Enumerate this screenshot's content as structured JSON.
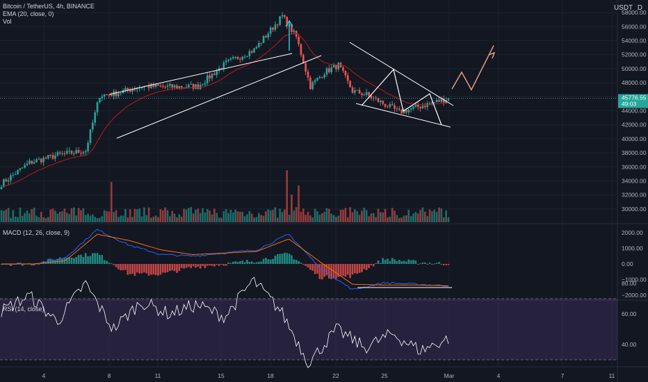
{
  "header": {
    "symbol_line": "Bitcoin / TetherUS, 4h, BINANCE",
    "ema_line": "EMA (20, close, 0)",
    "vol_line": "Vol",
    "currency": "USDT",
    "currency_sub": "D"
  },
  "price_axis": {
    "ticks": [
      "58000.00",
      "56000.00",
      "54000.00",
      "52000.00",
      "50000.00",
      "48000.00",
      "46000.00",
      "44000.00",
      "42000.00",
      "40000.00",
      "38000.00",
      "36000.00",
      "34000.00",
      "32000.00",
      "30000.00"
    ],
    "last_price": "45776.55",
    "countdown": "49:03"
  },
  "macd_pane": {
    "label": "MACD (12, 26, close, 9)",
    "ticks": [
      "2000.00",
      "1000.00",
      "0.00",
      "−1000.00",
      "−2000.00"
    ]
  },
  "rsi_pane": {
    "label": "RSI (14, close)",
    "ticks": [
      "80.00",
      "60.00",
      "40.00"
    ]
  },
  "time_axis": {
    "ticks": [
      "4",
      "8",
      "11",
      "15",
      "18",
      "22",
      "25",
      "Mar",
      "4",
      "7",
      "11"
    ]
  },
  "colors": {
    "background": "#131722",
    "up": "#26a69a",
    "down": "#ef5350",
    "ema": "#b71c1c",
    "macd_line": "#2962ff",
    "signal_line": "#ff6d00",
    "rsi_line": "#ffffff",
    "rsi_band": "#7e57c2",
    "projection": "#f4a582",
    "drawing": "#ffffff"
  },
  "chart_data": [
    {
      "type": "candlestick",
      "title": "Bitcoin / TetherUS, 4h, BINANCE",
      "x_axis": "date (Feb 2021 – Mar 2021)",
      "ylim": [
        29000,
        59500
      ],
      "anchors": [
        {
          "date": "Feb 1",
          "close": 33600
        },
        {
          "date": "Feb 3",
          "close": 36600
        },
        {
          "date": "Feb 5",
          "close": 37700
        },
        {
          "date": "Feb 7",
          "close": 38300
        },
        {
          "date": "Feb 8",
          "close": 46200
        },
        {
          "date": "Feb 9",
          "close": 46400
        },
        {
          "date": "Feb 11",
          "close": 47500
        },
        {
          "date": "Feb 13",
          "close": 47400
        },
        {
          "date": "Feb 15",
          "close": 47500
        },
        {
          "date": "Feb 17",
          "close": 50800
        },
        {
          "date": "Feb 19",
          "close": 52700
        },
        {
          "date": "Feb 21",
          "close": 57500
        },
        {
          "date": "Feb 22",
          "close": 54500
        },
        {
          "date": "Feb 23",
          "close": 47500
        },
        {
          "date": "Feb 24",
          "close": 49500
        },
        {
          "date": "Feb 25",
          "close": 50500
        },
        {
          "date": "Feb 26",
          "close": 46800
        },
        {
          "date": "Feb 27",
          "close": 46300
        },
        {
          "date": "Feb 28",
          "close": 43800
        },
        {
          "date": "Mar 1",
          "close": 45776.55
        }
      ],
      "last_close": 45776.55,
      "projection_path": [
        47100,
        49500,
        47000,
        53300
      ],
      "volume_spikes": [
        {
          "date": "Feb 8",
          "label": "spike"
        },
        {
          "date": "Feb 22",
          "label": "spike"
        },
        {
          "date": "Feb 23",
          "label": "spike"
        }
      ]
    },
    {
      "type": "line",
      "title": "MACD (12, 26, close, 9)",
      "ylim": [
        -2300,
        2300
      ],
      "series": [
        {
          "name": "MACD",
          "anchors": [
            0,
            0,
            400,
            2200,
            1200,
            600,
            500,
            700,
            900,
            1900,
            -300,
            -1650,
            -1200,
            -1300,
            -1400
          ]
        },
        {
          "name": "Signal",
          "anchors": [
            0,
            0,
            200,
            1900,
            1500,
            900,
            600,
            700,
            800,
            1600,
            100,
            -1300,
            -1350,
            -1350,
            -1400
          ]
        }
      ]
    },
    {
      "type": "line",
      "title": "RSI (14, close)",
      "ylim": [
        25,
        85
      ],
      "levels": [
        70,
        30
      ],
      "series": [
        {
          "name": "RSI",
          "anchors": [
            62,
            72,
            55,
            80,
            50,
            68,
            60,
            66,
            58,
            82,
            62,
            28,
            50,
            38,
            47,
            36,
            44
          ]
        }
      ]
    }
  ]
}
